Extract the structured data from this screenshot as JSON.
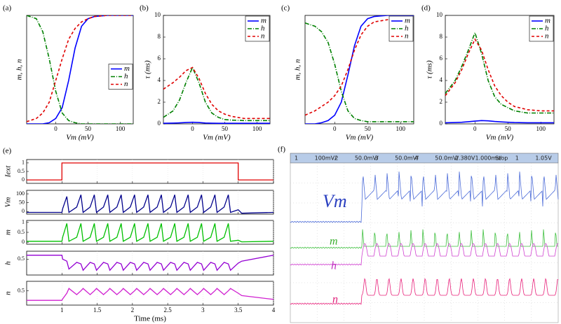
{
  "chart_data": [
    {
      "type": "line",
      "panel_label": "(a)",
      "xlabel": "Vm (mV)",
      "ylabel": "m, h, n",
      "x": [
        -45,
        -30,
        -20,
        -10,
        0,
        10,
        20,
        30,
        40,
        50,
        60,
        80,
        100,
        120
      ],
      "xlim": [
        -45,
        120
      ],
      "xticks": [
        0,
        50,
        100
      ],
      "ylim": [
        0,
        1
      ],
      "legend": "right",
      "series": [
        {
          "name": "m",
          "color": "#0000ff",
          "style": "solid",
          "values": [
            0,
            0,
            0,
            0.01,
            0.05,
            0.15,
            0.4,
            0.7,
            0.9,
            0.97,
            0.99,
            1,
            1,
            1
          ]
        },
        {
          "name": "h",
          "color": "#008000",
          "style": "dashdot",
          "values": [
            1,
            0.97,
            0.85,
            0.6,
            0.3,
            0.1,
            0.03,
            0.01,
            0,
            0,
            0,
            0,
            0,
            0
          ]
        },
        {
          "name": "n",
          "color": "#e00000",
          "style": "dashed",
          "values": [
            0.02,
            0.05,
            0.1,
            0.2,
            0.4,
            0.6,
            0.78,
            0.88,
            0.94,
            0.97,
            0.99,
            1,
            1,
            1
          ]
        }
      ]
    },
    {
      "type": "line",
      "panel_label": "(b)",
      "xlabel": "Vm (mV)",
      "ylabel": "τ (ms)",
      "x": [
        -45,
        -30,
        -20,
        -10,
        0,
        10,
        20,
        30,
        40,
        50,
        60,
        80,
        100,
        120
      ],
      "xlim": [
        -45,
        120
      ],
      "xticks": [
        0,
        50,
        100
      ],
      "ylim": [
        0,
        10
      ],
      "yticks": [
        0,
        2,
        4,
        6,
        8,
        10
      ],
      "legend": "upper right",
      "series": [
        {
          "name": "m",
          "color": "#0000ff",
          "style": "solid",
          "values": [
            0.05,
            0.07,
            0.09,
            0.12,
            0.15,
            0.12,
            0.08,
            0.06,
            0.05,
            0.05,
            0.05,
            0.05,
            0.05,
            0.05
          ]
        },
        {
          "name": "h",
          "color": "#008000",
          "style": "dashdot",
          "values": [
            0.6,
            1.2,
            2.2,
            3.8,
            5.2,
            3.8,
            2,
            1,
            0.6,
            0.4,
            0.35,
            0.3,
            0.3,
            0.3
          ]
        },
        {
          "name": "n",
          "color": "#e00000",
          "style": "dashed",
          "values": [
            3.2,
            3.8,
            4.3,
            4.9,
            5.2,
            4.2,
            2.8,
            1.8,
            1.2,
            0.9,
            0.7,
            0.5,
            0.5,
            0.5
          ]
        }
      ]
    },
    {
      "type": "line",
      "panel_label": "(c)",
      "xlabel": "Vm (mV)",
      "ylabel": "m, h, n",
      "x": [
        -45,
        -30,
        -20,
        -10,
        0,
        10,
        20,
        30,
        40,
        50,
        60,
        80,
        100,
        120
      ],
      "xlim": [
        -45,
        120
      ],
      "xticks": [
        0,
        50,
        100
      ],
      "ylim": [
        0,
        1
      ],
      "legend": "upper right",
      "series": [
        {
          "name": "m",
          "color": "#0000ff",
          "style": "solid",
          "values": [
            0,
            0,
            0.01,
            0.03,
            0.08,
            0.2,
            0.45,
            0.72,
            0.9,
            0.97,
            0.99,
            1,
            1,
            1
          ]
        },
        {
          "name": "h",
          "color": "#008000",
          "style": "dashdot",
          "values": [
            0.93,
            0.9,
            0.85,
            0.75,
            0.55,
            0.3,
            0.12,
            0.05,
            0.03,
            0.02,
            0.02,
            0.02,
            0.02,
            0.02
          ]
        },
        {
          "name": "n",
          "color": "#e00000",
          "style": "dashed",
          "values": [
            0.08,
            0.12,
            0.16,
            0.2,
            0.26,
            0.35,
            0.5,
            0.68,
            0.82,
            0.9,
            0.94,
            0.96,
            0.97,
            0.97
          ]
        }
      ]
    },
    {
      "type": "line",
      "panel_label": "(d)",
      "xlabel": "Vm (mV)",
      "ylabel": "τ (ms)",
      "x": [
        -45,
        -30,
        -20,
        -10,
        0,
        10,
        20,
        30,
        40,
        50,
        60,
        80,
        100,
        120
      ],
      "xlim": [
        -45,
        120
      ],
      "xticks": [
        0,
        50,
        100
      ],
      "ylim": [
        0,
        10
      ],
      "yticks": [
        0,
        2,
        4,
        6,
        8,
        10
      ],
      "legend": "upper right",
      "series": [
        {
          "name": "m",
          "color": "#0000ff",
          "style": "solid",
          "values": [
            0.1,
            0.12,
            0.15,
            0.2,
            0.25,
            0.3,
            0.28,
            0.22,
            0.18,
            0.15,
            0.12,
            0.1,
            0.1,
            0.1
          ]
        },
        {
          "name": "h",
          "color": "#008000",
          "style": "dashdot",
          "values": [
            2.8,
            4,
            5.3,
            6.8,
            8.4,
            6.5,
            4,
            2.5,
            1.8,
            1.5,
            1.2,
            1,
            1,
            1
          ]
        },
        {
          "name": "n",
          "color": "#e00000",
          "style": "dashed",
          "values": [
            2.6,
            3.8,
            5,
            6.5,
            7.8,
            6.8,
            5,
            3.5,
            2.6,
            2,
            1.6,
            1.3,
            1.2,
            1.2
          ]
        }
      ]
    },
    {
      "type": "stacked-lines",
      "panel_label": "(e)",
      "xlabel": "Time (ms)",
      "xlim": [
        0.5,
        4
      ],
      "xticks": [
        1,
        1.5,
        2,
        2.5,
        3,
        3.5,
        4
      ],
      "x": [
        0.5,
        1,
        1.01,
        1.07,
        1.1,
        1.21,
        1.27,
        1.3,
        1.4,
        1.46,
        1.49,
        1.59,
        1.65,
        1.68,
        1.78,
        1.84,
        1.87,
        1.97,
        2.03,
        2.06,
        2.16,
        2.22,
        2.25,
        2.35,
        2.41,
        2.44,
        2.54,
        2.6,
        2.63,
        2.73,
        2.79,
        2.82,
        2.92,
        2.98,
        3.01,
        3.11,
        3.17,
        3.2,
        3.3,
        3.36,
        3.39,
        3.5,
        3.55,
        4
      ],
      "panels": [
        {
          "ylabel": "Iext",
          "color": "#e00000",
          "ylim": [
            -0.2,
            1.2
          ],
          "yticks": [
            0,
            0.5,
            1
          ],
          "x": [
            0.5,
            1,
            1,
            3.5,
            3.5,
            4
          ],
          "values": [
            0,
            0,
            1,
            1,
            0,
            0
          ]
        },
        {
          "ylabel": "Vm",
          "color": "#00008b",
          "ylim": [
            -15,
            120
          ],
          "yticks": [
            0,
            50,
            100
          ],
          "values": [
            -5,
            -5,
            15,
            85,
            -5,
            25,
            95,
            -5,
            25,
            95,
            -5,
            25,
            95,
            -5,
            25,
            95,
            -5,
            25,
            95,
            -5,
            25,
            95,
            -5,
            25,
            95,
            -5,
            25,
            95,
            -5,
            25,
            95,
            -5,
            25,
            95,
            -5,
            25,
            95,
            -5,
            25,
            95,
            -5,
            10,
            -10,
            -5
          ]
        },
        {
          "ylabel": "m",
          "color": "#00c000",
          "ylim": [
            -0.1,
            1.1
          ],
          "yticks": [
            0,
            0.5,
            1
          ],
          "values": [
            0.05,
            0.05,
            0.25,
            0.95,
            0.05,
            0.25,
            0.95,
            0.05,
            0.25,
            0.95,
            0.05,
            0.25,
            0.95,
            0.05,
            0.25,
            0.95,
            0.05,
            0.25,
            0.95,
            0.05,
            0.25,
            0.95,
            0.05,
            0.25,
            0.95,
            0.05,
            0.25,
            0.95,
            0.05,
            0.25,
            0.95,
            0.05,
            0.25,
            0.95,
            0.05,
            0.25,
            0.95,
            0.05,
            0.25,
            0.95,
            0.05,
            0.1,
            0.02,
            0.05
          ]
        },
        {
          "ylabel": "h",
          "color": "#9400d3",
          "ylim": [
            0.1,
            0.7
          ],
          "yticks": [
            0.5
          ],
          "values": [
            0.6,
            0.6,
            0.5,
            0.45,
            0.25,
            0.42,
            0.38,
            0.22,
            0.42,
            0.38,
            0.22,
            0.42,
            0.38,
            0.22,
            0.42,
            0.38,
            0.22,
            0.42,
            0.38,
            0.22,
            0.42,
            0.38,
            0.22,
            0.42,
            0.38,
            0.22,
            0.42,
            0.38,
            0.22,
            0.42,
            0.38,
            0.22,
            0.42,
            0.38,
            0.22,
            0.42,
            0.38,
            0.22,
            0.42,
            0.38,
            0.22,
            0.4,
            0.45,
            0.6
          ]
        },
        {
          "ylabel": "n",
          "color": "#d020d0",
          "ylim": [
            0.2,
            0.7
          ],
          "yticks": [
            0.5
          ],
          "values": [
            0.3,
            0.3,
            0.33,
            0.45,
            0.55,
            0.42,
            0.5,
            0.55,
            0.42,
            0.5,
            0.55,
            0.42,
            0.5,
            0.55,
            0.42,
            0.5,
            0.55,
            0.42,
            0.5,
            0.55,
            0.42,
            0.5,
            0.55,
            0.42,
            0.5,
            0.55,
            0.42,
            0.5,
            0.55,
            0.42,
            0.5,
            0.55,
            0.42,
            0.5,
            0.55,
            0.42,
            0.5,
            0.55,
            0.42,
            0.5,
            0.55,
            0.45,
            0.4,
            0.32
          ]
        }
      ]
    },
    {
      "type": "oscilloscope",
      "panel_label": "(f)",
      "header": [
        "1",
        "100mV/",
        "2",
        "50.0mV/",
        "3",
        "50.0mV/",
        "4",
        "50.0mV/",
        "2.380V",
        "1.000ms/",
        "Stop",
        "1",
        "1.05V"
      ],
      "trace_labels": [
        {
          "text": "Vm",
          "color": "#2a3fc0"
        },
        {
          "text": "m",
          "color": "#3cb030"
        },
        {
          "text": "h",
          "color": "#c030c0"
        },
        {
          "text": "n",
          "color": "#e0207a"
        }
      ]
    }
  ]
}
